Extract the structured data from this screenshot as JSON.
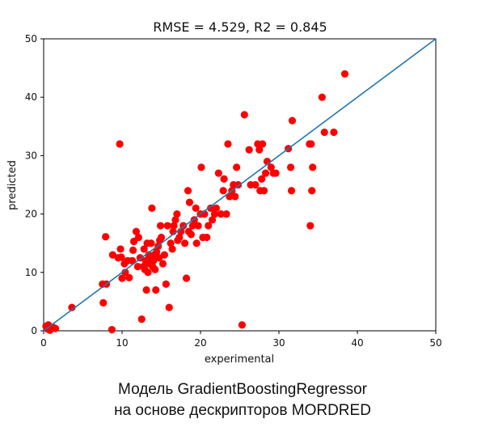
{
  "chart_data": {
    "type": "scatter",
    "title": "RMSE = 4.529, R2 = 0.845",
    "xlabel": "experimental",
    "ylabel": "predicted",
    "xlim": [
      0,
      50
    ],
    "ylim": [
      0,
      50
    ],
    "xticks": [
      "0",
      "10",
      "20",
      "30",
      "40",
      "50"
    ],
    "yticks": [
      "0",
      "10",
      "20",
      "30",
      "40",
      "50"
    ],
    "grid": false,
    "point_color": "#ff0000",
    "line_color": "#1f77b4",
    "reference_line": {
      "x": [
        0,
        50
      ],
      "y": [
        0,
        50
      ]
    },
    "points": [
      [
        0.3,
        0.8
      ],
      [
        0.5,
        0.3
      ],
      [
        0.8,
        0.1
      ],
      [
        1.2,
        0.6
      ],
      [
        1.5,
        0.4
      ],
      [
        0.6,
        1.0
      ],
      [
        3.6,
        4.0
      ],
      [
        7.5,
        8.0
      ],
      [
        7.6,
        4.8
      ],
      [
        8.0,
        8.0
      ],
      [
        7.9,
        16.1
      ],
      [
        8.7,
        0.2
      ],
      [
        8.8,
        13.0
      ],
      [
        9.5,
        12.5
      ],
      [
        9.8,
        14.0
      ],
      [
        9.7,
        32.0
      ],
      [
        9.9,
        12.6
      ],
      [
        10.0,
        9.0
      ],
      [
        10.3,
        11.5
      ],
      [
        10.4,
        10.0
      ],
      [
        10.7,
        12.0
      ],
      [
        10.9,
        9.1
      ],
      [
        11.3,
        12.0
      ],
      [
        11.5,
        15.3
      ],
      [
        11.4,
        13.8
      ],
      [
        11.8,
        17.0
      ],
      [
        12.0,
        11.0
      ],
      [
        12.1,
        16.0
      ],
      [
        12.3,
        12.5
      ],
      [
        12.5,
        2.0
      ],
      [
        12.7,
        11.0
      ],
      [
        12.8,
        14.0
      ],
      [
        12.9,
        10.5
      ],
      [
        13.0,
        12.0
      ],
      [
        13.1,
        7.0
      ],
      [
        13.2,
        15.0
      ],
      [
        13.3,
        10.0
      ],
      [
        13.4,
        13.0
      ],
      [
        13.5,
        11.5
      ],
      [
        13.6,
        12.5
      ],
      [
        13.7,
        15.0
      ],
      [
        13.8,
        21.0
      ],
      [
        13.9,
        11.0
      ],
      [
        14.0,
        12.0
      ],
      [
        14.1,
        13.0
      ],
      [
        14.2,
        10.5
      ],
      [
        14.3,
        7.0
      ],
      [
        14.4,
        13.5
      ],
      [
        14.6,
        14.5
      ],
      [
        14.7,
        12.5
      ],
      [
        14.8,
        15.5
      ],
      [
        14.9,
        18.0
      ],
      [
        15.0,
        16.0
      ],
      [
        15.2,
        11.5
      ],
      [
        15.4,
        13.0
      ],
      [
        15.6,
        8.0
      ],
      [
        15.8,
        18.0
      ],
      [
        16.0,
        4.0
      ],
      [
        16.2,
        15.0
      ],
      [
        16.4,
        14.0
      ],
      [
        16.5,
        17.0
      ],
      [
        16.6,
        18.0
      ],
      [
        16.8,
        19.0
      ],
      [
        17.0,
        20.0
      ],
      [
        17.1,
        15.5
      ],
      [
        17.3,
        16.0
      ],
      [
        17.5,
        17.0
      ],
      [
        17.8,
        18.0
      ],
      [
        18.0,
        15.0
      ],
      [
        18.2,
        9.0
      ],
      [
        18.4,
        24.0
      ],
      [
        18.5,
        17.0
      ],
      [
        18.6,
        22.0
      ],
      [
        18.8,
        16.5
      ],
      [
        19.0,
        18.0
      ],
      [
        19.2,
        19.0
      ],
      [
        19.4,
        21.0
      ],
      [
        19.5,
        15.0
      ],
      [
        19.7,
        18.0
      ],
      [
        20.0,
        20.0
      ],
      [
        20.1,
        28.0
      ],
      [
        20.3,
        16.0
      ],
      [
        20.5,
        20.0
      ],
      [
        20.8,
        16.0
      ],
      [
        21.0,
        18.0
      ],
      [
        21.3,
        21.0
      ],
      [
        21.5,
        19.0
      ],
      [
        21.8,
        20.0
      ],
      [
        22.0,
        21.0
      ],
      [
        22.3,
        27.0
      ],
      [
        22.6,
        20.0
      ],
      [
        22.9,
        24.0
      ],
      [
        23.0,
        26.0
      ],
      [
        23.3,
        20.0
      ],
      [
        23.5,
        32.0
      ],
      [
        23.7,
        23.0
      ],
      [
        24.0,
        24.0
      ],
      [
        24.2,
        25.0
      ],
      [
        24.4,
        23.0
      ],
      [
        24.6,
        28.0
      ],
      [
        24.8,
        25.0
      ],
      [
        25.3,
        1.0
      ],
      [
        25.6,
        37.0
      ],
      [
        26.2,
        31.0
      ],
      [
        26.4,
        25.0
      ],
      [
        27.0,
        25.0
      ],
      [
        27.3,
        32.0
      ],
      [
        27.5,
        31.0
      ],
      [
        27.6,
        24.0
      ],
      [
        27.8,
        26.0
      ],
      [
        27.9,
        32.0
      ],
      [
        28.1,
        24.0
      ],
      [
        28.3,
        27.0
      ],
      [
        28.5,
        29.0
      ],
      [
        29.0,
        28.0
      ],
      [
        29.3,
        27.0
      ],
      [
        29.6,
        27.0
      ],
      [
        31.2,
        31.2
      ],
      [
        31.5,
        28.0
      ],
      [
        31.6,
        24.0
      ],
      [
        31.7,
        36.0
      ],
      [
        33.9,
        32.0
      ],
      [
        34.0,
        18.0
      ],
      [
        34.1,
        32.0
      ],
      [
        34.2,
        24.0
      ],
      [
        34.3,
        28.0
      ],
      [
        35.5,
        40.0
      ],
      [
        35.8,
        34.0
      ],
      [
        37.0,
        34.0
      ],
      [
        38.4,
        44.0
      ]
    ]
  },
  "caption": {
    "line1": "Модель GradientBoostingRegressor",
    "line2": "на основе дескрипторов MORDRED"
  }
}
